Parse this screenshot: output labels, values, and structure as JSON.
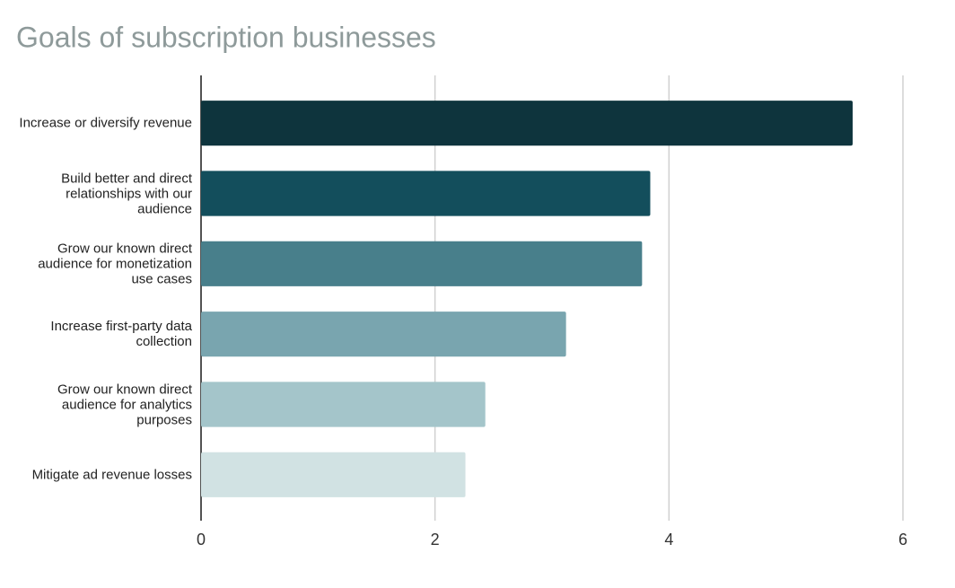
{
  "chart_data": {
    "type": "bar",
    "orientation": "horizontal",
    "title": "Goals of subscription businesses",
    "categories": [
      "Increase or diversify revenue",
      "Build better and direct relationships with our audience",
      "Grow our known direct audience for monetization use cases",
      "Increase first-party data collection",
      "Grow our known direct audience for analytics purposes",
      "Mitigate ad revenue losses"
    ],
    "values": [
      5.57,
      3.84,
      3.77,
      3.12,
      2.43,
      2.26
    ],
    "colors": [
      "#0e343d",
      "#134e5c",
      "#487f8b",
      "#79a5af",
      "#a4c5ca",
      "#d1e2e3"
    ],
    "xlim": [
      0,
      6
    ],
    "xticks": [
      0,
      2,
      4,
      6
    ],
    "grid": true
  }
}
